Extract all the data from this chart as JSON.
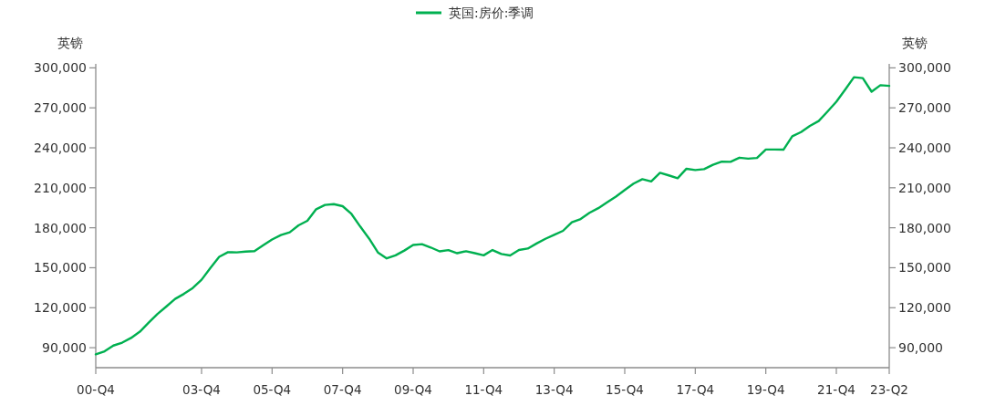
{
  "chart_data": {
    "type": "line",
    "ylabel": "英镑",
    "y2label": "英镑",
    "categories": [
      "00-Q4",
      null,
      null,
      null,
      null,
      null,
      null,
      null,
      null,
      null,
      null,
      null,
      "03-Q4",
      null,
      null,
      null,
      null,
      null,
      null,
      null,
      "05-Q4",
      null,
      null,
      null,
      null,
      null,
      null,
      null,
      "07-Q4",
      null,
      null,
      null,
      null,
      null,
      null,
      null,
      "09-Q4",
      null,
      null,
      null,
      null,
      null,
      null,
      null,
      "11-Q4",
      null,
      null,
      null,
      null,
      null,
      null,
      null,
      "13-Q4",
      null,
      null,
      null,
      null,
      null,
      null,
      null,
      "15-Q4",
      null,
      null,
      null,
      null,
      null,
      null,
      null,
      "17-Q4",
      null,
      null,
      null,
      null,
      null,
      null,
      null,
      "19-Q4",
      null,
      null,
      null,
      null,
      null,
      null,
      null,
      "21-Q4",
      null,
      null,
      null,
      null,
      null,
      "23-Q2"
    ],
    "series": [
      {
        "name": "英国:房价:季调",
        "color": "#00b050",
        "values": [
          85000,
          87300,
          91600,
          93800,
          97300,
          102000,
          108800,
          115300,
          120900,
          126600,
          130400,
          134800,
          141000,
          149800,
          158200,
          161700,
          161500,
          162100,
          162500,
          166900,
          171200,
          174500,
          176600,
          181800,
          185200,
          193900,
          197100,
          197700,
          196200,
          190400,
          180900,
          171900,
          161500,
          157000,
          159300,
          162900,
          167100,
          167700,
          165200,
          162300,
          163200,
          160900,
          162400,
          160900,
          159300,
          163300,
          160300,
          159200,
          163300,
          164400,
          168200,
          171700,
          174700,
          177700,
          184100,
          186600,
          191200,
          194700,
          199100,
          203400,
          208300,
          213100,
          216500,
          214800,
          221200,
          219300,
          217200,
          224300,
          223300,
          224000,
          227300,
          229600,
          229500,
          232600,
          231900,
          232400,
          238700,
          238700,
          238600,
          248700,
          251800,
          256400,
          260100,
          267200,
          274600,
          283600,
          293000,
          292300,
          282100,
          287000,
          286500
        ]
      }
    ],
    "ylim": [
      75000,
      303000
    ],
    "yticks": [
      {
        "value": 90000,
        "label": "90,000"
      },
      {
        "value": 120000,
        "label": "120,000"
      },
      {
        "value": 150000,
        "label": "150,000"
      },
      {
        "value": 180000,
        "label": "180,000"
      },
      {
        "value": 210000,
        "label": "210,000"
      },
      {
        "value": 240000,
        "label": "240,000"
      },
      {
        "value": 270000,
        "label": "270,000"
      },
      {
        "value": 300000,
        "label": "300,000"
      }
    ],
    "y2lim": [
      75000,
      303000
    ],
    "y2ticks": [
      {
        "value": 90000,
        "label": "90,000"
      },
      {
        "value": 120000,
        "label": "120,000"
      },
      {
        "value": 150000,
        "label": "150,000"
      },
      {
        "value": 180000,
        "label": "180,000"
      },
      {
        "value": 210000,
        "label": "210,000"
      },
      {
        "value": 240000,
        "label": "240,000"
      },
      {
        "value": 270000,
        "label": "270,000"
      },
      {
        "value": 300000,
        "label": "300,000"
      }
    ],
    "legend": "top",
    "marker": "none",
    "line_style": "solid"
  }
}
